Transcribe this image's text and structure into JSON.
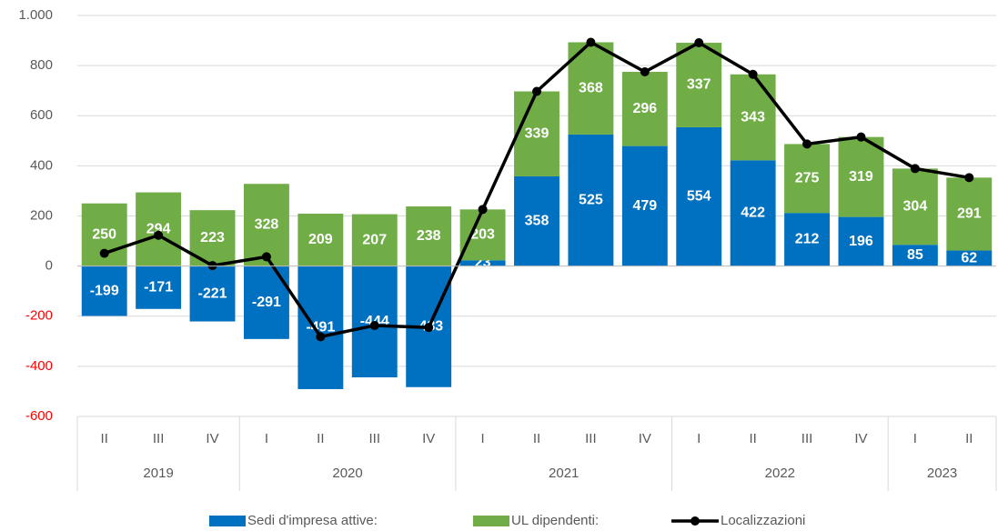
{
  "chart_data": {
    "type": "stacked_bar_line",
    "categories": [
      "II",
      "III",
      "IV",
      "I",
      "II",
      "III",
      "IV",
      "I",
      "II",
      "III",
      "IV",
      "I",
      "II",
      "III",
      "IV",
      "I",
      "II"
    ],
    "groups": [
      {
        "label": "2019",
        "span": 3
      },
      {
        "label": "2020",
        "span": 4
      },
      {
        "label": "2021",
        "span": 4
      },
      {
        "label": "2022",
        "span": 4
      },
      {
        "label": "2023",
        "span": 2
      }
    ],
    "series": [
      {
        "name": "Sedi d'impresa attive:",
        "color": "#0070c0",
        "kind": "bar",
        "values": [
          -199,
          -171,
          -221,
          -291,
          -491,
          -444,
          -483,
          23,
          358,
          525,
          479,
          554,
          422,
          212,
          196,
          85,
          62
        ]
      },
      {
        "name": "UL dipendenti:",
        "color": "#70ad47",
        "kind": "bar",
        "values": [
          250,
          294,
          223,
          328,
          209,
          207,
          238,
          203,
          339,
          368,
          296,
          337,
          343,
          275,
          319,
          304,
          291
        ]
      },
      {
        "name": "Localizzazioni",
        "color": "#000000",
        "kind": "line",
        "values": [
          51,
          123,
          2,
          37,
          -282,
          -237,
          -245,
          226,
          697,
          893,
          775,
          891,
          765,
          487,
          515,
          389,
          353
        ]
      }
    ],
    "ylim": [
      -600,
      1000
    ],
    "yticks": [
      -600,
      -400,
      -200,
      0,
      200,
      400,
      600,
      800,
      {
        "value": 1000,
        "label": "1.000"
      }
    ],
    "negative_tick_color": "#ff0000",
    "grid": true
  }
}
